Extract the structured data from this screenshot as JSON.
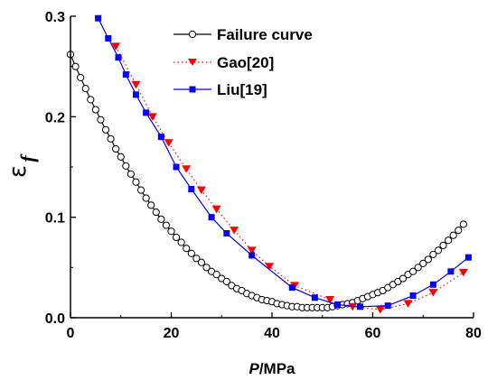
{
  "chart_data": {
    "type": "line",
    "x_tick_labels": [
      "0",
      "20",
      "40",
      "60",
      "80"
    ],
    "y_tick_labels": [
      "0.0",
      "0.1",
      "0.2",
      "0.3"
    ],
    "xlabel_italic": "P",
    "xlabel_rest": "/MPa",
    "ylabel_main": "ε",
    "ylabel_sub": "f",
    "xlim": [
      0,
      80
    ],
    "ylim": [
      0,
      0.3
    ],
    "legend_position": "top-center",
    "series": [
      {
        "name": "Failure curve",
        "color": "#000000",
        "line_style": "solid",
        "marker": "open-circle",
        "x": [
          0,
          1,
          2,
          3,
          4,
          5,
          6,
          7,
          8,
          9,
          10,
          11,
          12,
          13,
          14,
          15,
          16,
          17,
          18,
          19,
          20,
          21,
          22,
          23,
          24,
          25,
          26,
          27,
          28,
          29,
          30,
          31,
          32,
          33,
          34,
          35,
          36,
          37,
          38,
          39,
          40,
          41,
          42,
          43,
          44,
          45,
          46,
          47,
          48,
          49,
          50,
          51,
          52,
          53,
          54,
          55,
          56,
          57,
          58,
          59,
          60,
          61,
          62,
          63,
          64,
          65,
          66,
          67,
          68,
          69,
          70,
          71,
          72,
          73,
          74,
          75,
          76,
          77,
          78
        ],
        "y": [
          0.262,
          0.25,
          0.239,
          0.228,
          0.217,
          0.207,
          0.197,
          0.187,
          0.178,
          0.168,
          0.16,
          0.151,
          0.143,
          0.135,
          0.127,
          0.119,
          0.112,
          0.105,
          0.098,
          0.092,
          0.086,
          0.08,
          0.075,
          0.069,
          0.064,
          0.059,
          0.055,
          0.05,
          0.046,
          0.043,
          0.039,
          0.036,
          0.032,
          0.029,
          0.027,
          0.024,
          0.022,
          0.02,
          0.018,
          0.017,
          0.016,
          0.014,
          0.013,
          0.012,
          0.011,
          0.011,
          0.01,
          0.01,
          0.01,
          0.01,
          0.01,
          0.01,
          0.011,
          0.012,
          0.013,
          0.014,
          0.015,
          0.017,
          0.019,
          0.021,
          0.023,
          0.025,
          0.027,
          0.03,
          0.033,
          0.036,
          0.039,
          0.043,
          0.046,
          0.05,
          0.054,
          0.058,
          0.063,
          0.067,
          0.072,
          0.077,
          0.082,
          0.087,
          0.093
        ]
      },
      {
        "name": "Gao[20]",
        "color": "#ff0000",
        "line_style": "dotted",
        "marker": "down-triangle",
        "x": [
          9,
          13,
          16.3,
          19.5,
          23,
          26,
          29,
          32.5,
          36,
          39.5,
          44.5,
          51.5,
          56,
          61.5,
          67,
          72,
          78
        ],
        "y": [
          0.27,
          0.232,
          0.2,
          0.174,
          0.148,
          0.127,
          0.108,
          0.087,
          0.067,
          0.051,
          0.032,
          0.018,
          0.011,
          0.008,
          0.014,
          0.025,
          0.045
        ]
      },
      {
        "name": "Liu[19]",
        "color": "#0000ff",
        "line_style": "solid",
        "marker": "filled-square",
        "x": [
          5.5,
          7.5,
          9.5,
          11,
          13,
          15,
          18,
          21,
          24,
          28,
          31,
          36,
          44,
          48.5,
          53,
          57.5,
          63,
          68,
          72,
          75.5,
          79
        ],
        "y": [
          0.298,
          0.278,
          0.259,
          0.242,
          0.222,
          0.204,
          0.18,
          0.15,
          0.128,
          0.1,
          0.084,
          0.062,
          0.03,
          0.02,
          0.013,
          0.011,
          0.012,
          0.022,
          0.033,
          0.046,
          0.06
        ]
      }
    ]
  }
}
